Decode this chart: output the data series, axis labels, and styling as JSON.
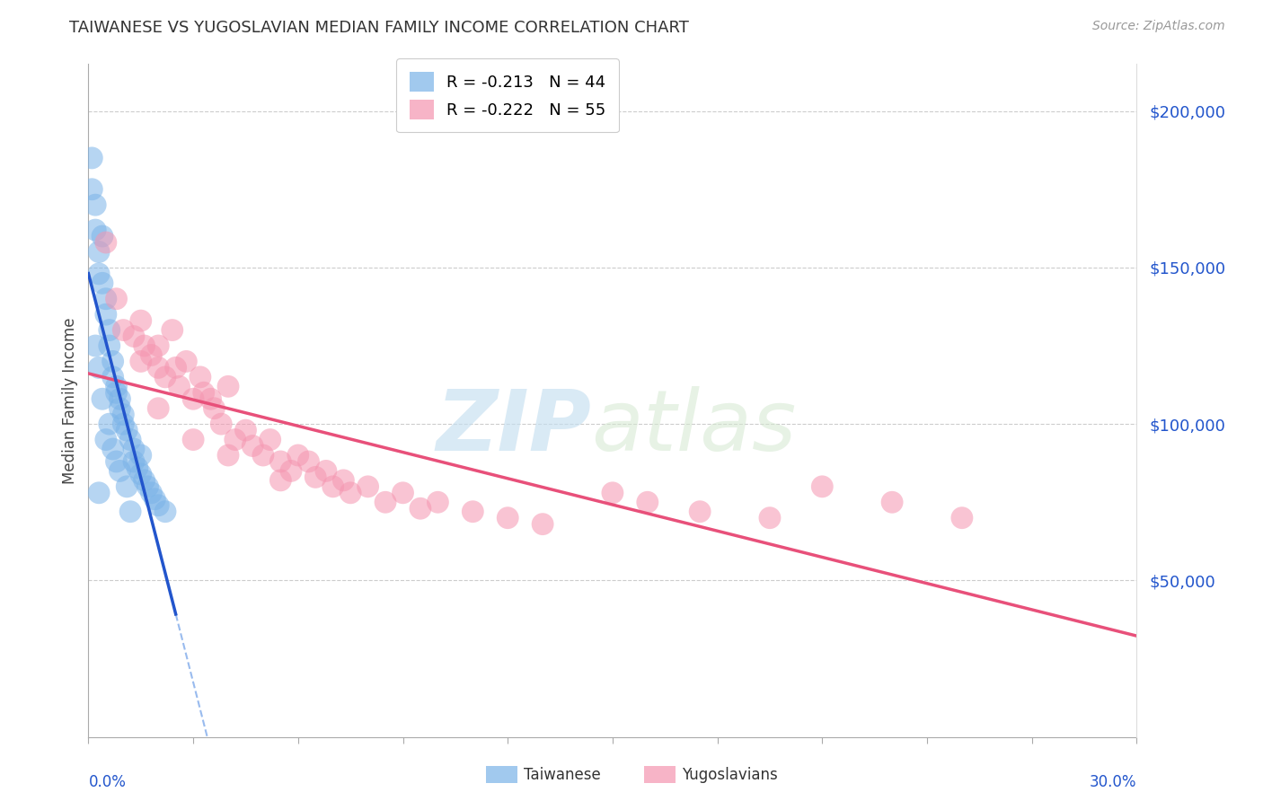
{
  "title": "TAIWANESE VS YUGOSLAVIAN MEDIAN FAMILY INCOME CORRELATION CHART",
  "source": "Source: ZipAtlas.com",
  "ylabel": "Median Family Income",
  "watermark_zip": "ZIP",
  "watermark_atlas": "atlas",
  "legend_taiwanese": {
    "R": -0.213,
    "N": 44,
    "label": "Taiwanese"
  },
  "legend_yugoslavians": {
    "R": -0.222,
    "N": 55,
    "label": "Yugoslavians"
  },
  "taiwanese_color": "#7ab3e8",
  "yugoslavian_color": "#f595b0",
  "taiwanese_line_solid_color": "#2255cc",
  "taiwanese_line_dashed_color": "#99bbee",
  "yugoslavian_line_color": "#e8507a",
  "background_color": "#ffffff",
  "ylim": [
    0,
    215000
  ],
  "xlim": [
    0.0,
    0.3
  ],
  "grid_color": "#cccccc",
  "tw_x": [
    0.001,
    0.001,
    0.002,
    0.002,
    0.003,
    0.003,
    0.004,
    0.004,
    0.005,
    0.005,
    0.006,
    0.006,
    0.007,
    0.007,
    0.008,
    0.008,
    0.009,
    0.009,
    0.01,
    0.01,
    0.011,
    0.012,
    0.013,
    0.013,
    0.014,
    0.015,
    0.016,
    0.017,
    0.018,
    0.019,
    0.02,
    0.022,
    0.003,
    0.015,
    0.005,
    0.008,
    0.004,
    0.007,
    0.002,
    0.003,
    0.012,
    0.006,
    0.009,
    0.011
  ],
  "tw_y": [
    185000,
    175000,
    170000,
    162000,
    155000,
    148000,
    160000,
    145000,
    140000,
    135000,
    130000,
    125000,
    120000,
    115000,
    112000,
    110000,
    108000,
    105000,
    103000,
    100000,
    98000,
    95000,
    92000,
    88000,
    86000,
    84000,
    82000,
    80000,
    78000,
    76000,
    74000,
    72000,
    78000,
    90000,
    95000,
    88000,
    108000,
    92000,
    125000,
    118000,
    72000,
    100000,
    85000,
    80000
  ],
  "yu_x": [
    0.005,
    0.008,
    0.01,
    0.013,
    0.015,
    0.016,
    0.018,
    0.02,
    0.02,
    0.022,
    0.024,
    0.025,
    0.026,
    0.028,
    0.03,
    0.032,
    0.033,
    0.035,
    0.036,
    0.038,
    0.04,
    0.042,
    0.045,
    0.047,
    0.05,
    0.052,
    0.055,
    0.058,
    0.06,
    0.063,
    0.065,
    0.068,
    0.07,
    0.073,
    0.075,
    0.08,
    0.085,
    0.09,
    0.095,
    0.1,
    0.11,
    0.12,
    0.13,
    0.15,
    0.16,
    0.175,
    0.195,
    0.21,
    0.23,
    0.25,
    0.015,
    0.02,
    0.03,
    0.04,
    0.055
  ],
  "yu_y": [
    158000,
    140000,
    130000,
    128000,
    133000,
    125000,
    122000,
    118000,
    125000,
    115000,
    130000,
    118000,
    112000,
    120000,
    108000,
    115000,
    110000,
    108000,
    105000,
    100000,
    112000,
    95000,
    98000,
    93000,
    90000,
    95000,
    88000,
    85000,
    90000,
    88000,
    83000,
    85000,
    80000,
    82000,
    78000,
    80000,
    75000,
    78000,
    73000,
    75000,
    72000,
    70000,
    68000,
    78000,
    75000,
    72000,
    70000,
    80000,
    75000,
    70000,
    120000,
    105000,
    95000,
    90000,
    82000
  ]
}
